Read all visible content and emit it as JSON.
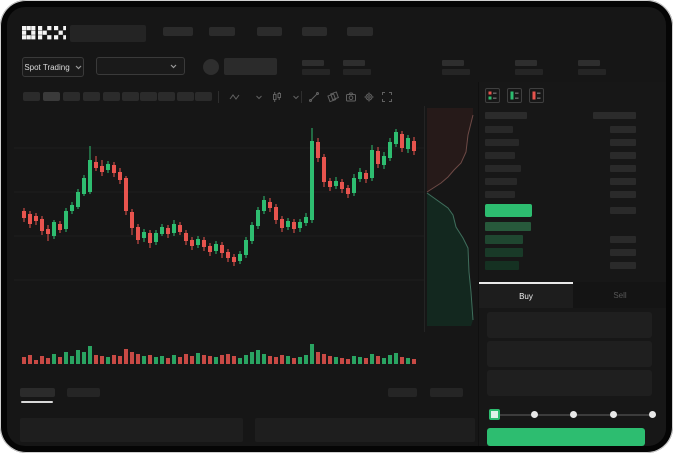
{
  "topbar": {
    "logo_text": "OKX",
    "nav_placeholder_count": 5
  },
  "instrument_bar": {
    "market_selector_label": "Spot Trading",
    "pair_selector_value": "",
    "stat_placeholder_count": 5
  },
  "chart_toolbar": {
    "timeframe_placeholder_count": 10,
    "active_timeframe_index": 1,
    "icons": [
      "wave-indicator-icon",
      "chevron-down-icon",
      "candle-style-icon",
      "chevron-down-icon",
      "line-tool-icon",
      "layers-icon",
      "camera-icon",
      "settings-gear-icon",
      "fullscreen-icon"
    ]
  },
  "orderbook": {
    "view_mode_icons": [
      "book-combined-icon",
      "book-bids-icon",
      "book-asks-icon"
    ],
    "ask_row_count": 6,
    "bid_row_count": 4,
    "bid_amount_rows": [
      1,
      2,
      3
    ],
    "bid_row_colors": [
      "#27593b",
      "#1f4630",
      "#193a28",
      "#153122"
    ],
    "last_price_color": "#2dbd70"
  },
  "trade_panel": {
    "buy_tab_label": "Buy",
    "sell_tab_label": "Sell",
    "active_tab": "Buy",
    "input_count": 3,
    "slider_stop_count": 5,
    "submit_button_label": "",
    "submit_button_color": "#2dbd70"
  },
  "bottom_bar": {
    "tab_placeholder_count": 2,
    "active_tab_index": 0,
    "right_button_count": 2,
    "panel_count": 2
  },
  "colors": {
    "up": "#2ebd70",
    "down": "#e8544e",
    "grid": "#1f1f1f",
    "placeholder": "#2b2b2b"
  },
  "chart_data": {
    "type": "candlestick_with_volume",
    "title": "",
    "note": "no axis labels visible; values are relative price units (0-220 of pane height)",
    "grid": true,
    "legend": false,
    "ohlc_format": [
      "open",
      "close",
      "high",
      "low"
    ],
    "candles": [
      [
        117,
        110,
        120,
        106
      ],
      [
        114,
        104,
        117,
        100
      ],
      [
        112,
        107,
        115,
        103
      ],
      [
        109,
        97,
        112,
        93
      ],
      [
        99,
        94,
        103,
        87
      ],
      [
        92,
        106,
        108,
        89
      ],
      [
        104,
        98,
        107,
        95
      ],
      [
        99,
        117,
        120,
        96
      ],
      [
        117,
        123,
        126,
        114
      ],
      [
        121,
        136,
        139,
        119
      ],
      [
        134,
        150,
        153,
        132
      ],
      [
        136,
        168,
        182,
        134
      ],
      [
        166,
        160,
        172,
        157
      ],
      [
        162,
        156,
        168,
        152
      ],
      [
        158,
        164,
        167,
        155
      ],
      [
        163,
        155,
        166,
        151
      ],
      [
        156,
        148,
        160,
        144
      ],
      [
        150,
        117,
        152,
        113
      ],
      [
        116,
        100,
        119,
        93
      ],
      [
        101,
        88,
        104,
        84
      ],
      [
        90,
        96,
        99,
        86
      ],
      [
        95,
        85,
        98,
        80
      ],
      [
        86,
        95,
        98,
        83
      ],
      [
        94,
        101,
        104,
        92
      ],
      [
        100,
        94,
        103,
        90
      ],
      [
        95,
        104,
        108,
        92
      ],
      [
        103,
        96,
        106,
        93
      ],
      [
        95,
        87,
        98,
        83
      ],
      [
        88,
        82,
        91,
        78
      ],
      [
        83,
        89,
        92,
        80
      ],
      [
        88,
        81,
        91,
        77
      ],
      [
        82,
        76,
        85,
        72
      ],
      [
        77,
        84,
        87,
        74
      ],
      [
        83,
        75,
        86,
        70
      ],
      [
        76,
        70,
        79,
        66
      ],
      [
        71,
        66,
        74,
        62
      ],
      [
        67,
        74,
        77,
        64
      ],
      [
        73,
        88,
        91,
        70
      ],
      [
        87,
        103,
        106,
        84
      ],
      [
        102,
        118,
        121,
        99
      ],
      [
        117,
        128,
        132,
        114
      ],
      [
        126,
        120,
        130,
        116
      ],
      [
        121,
        108,
        124,
        104
      ],
      [
        109,
        100,
        112,
        96
      ],
      [
        101,
        107,
        110,
        98
      ],
      [
        106,
        99,
        109,
        95
      ],
      [
        100,
        106,
        109,
        96
      ],
      [
        105,
        111,
        115,
        102
      ],
      [
        108,
        187,
        200,
        105
      ],
      [
        186,
        170,
        190,
        166
      ],
      [
        171,
        146,
        174,
        141
      ],
      [
        147,
        141,
        150,
        137
      ],
      [
        142,
        147,
        151,
        139
      ],
      [
        146,
        139,
        149,
        135
      ],
      [
        140,
        134,
        143,
        130
      ],
      [
        135,
        150,
        154,
        132
      ],
      [
        149,
        156,
        160,
        146
      ],
      [
        155,
        149,
        158,
        145
      ],
      [
        150,
        178,
        183,
        147
      ],
      [
        177,
        164,
        181,
        160
      ],
      [
        163,
        172,
        176,
        159
      ],
      [
        170,
        186,
        190,
        167
      ],
      [
        184,
        196,
        199,
        181
      ],
      [
        194,
        180,
        197,
        176
      ],
      [
        179,
        190,
        193,
        175
      ],
      [
        187,
        177,
        191,
        173
      ]
    ],
    "volumes": [
      7,
      9,
      4,
      8,
      6,
      10,
      7,
      12,
      8,
      14,
      12,
      18,
      9,
      8,
      7,
      9,
      8,
      15,
      12,
      10,
      8,
      9,
      7,
      8,
      6,
      9,
      7,
      10,
      8,
      11,
      9,
      8,
      7,
      9,
      10,
      8,
      6,
      9,
      12,
      14,
      10,
      8,
      7,
      9,
      8,
      6,
      7,
      9,
      20,
      12,
      10,
      8,
      7,
      6,
      5,
      8,
      7,
      6,
      10,
      8,
      6,
      9,
      11,
      7,
      6,
      5
    ],
    "depth": {
      "asks_outline": [
        [
          2,
          86
        ],
        [
          16,
          77
        ],
        [
          23,
          71
        ],
        [
          29,
          64
        ],
        [
          36,
          57
        ],
        [
          41,
          46
        ],
        [
          43,
          29
        ],
        [
          48,
          9
        ]
      ],
      "bids_outline": [
        [
          2,
          87
        ],
        [
          23,
          102
        ],
        [
          28,
          109
        ],
        [
          31,
          121
        ],
        [
          38,
          132
        ],
        [
          43,
          142
        ],
        [
          44,
          166
        ],
        [
          46,
          186
        ],
        [
          48,
          214
        ]
      ],
      "asks_fill": "#261a19",
      "bids_fill": "#13281f"
    }
  }
}
